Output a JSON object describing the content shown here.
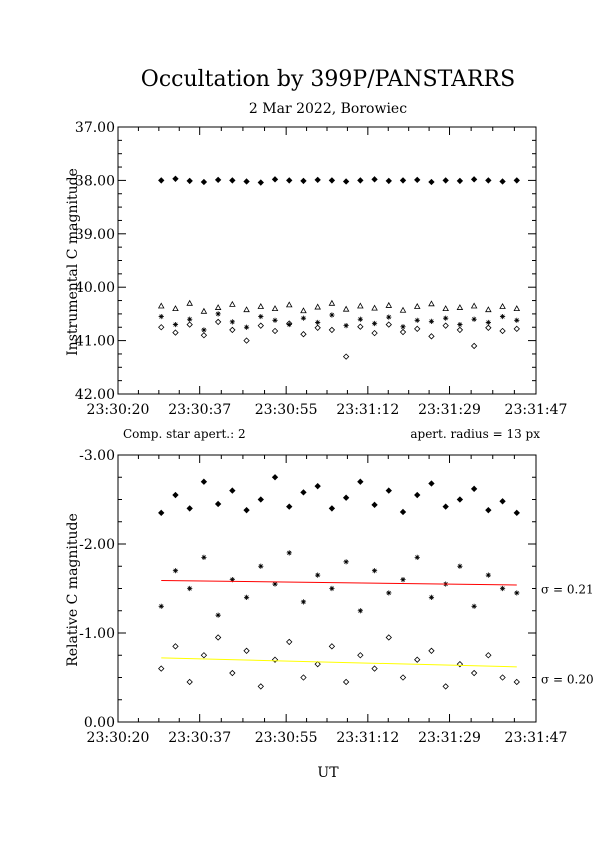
{
  "title": "Occultation by 399P/PANSTARRS",
  "subtitle": "2 Mar 2022, Borowiec",
  "xlabel": "UT",
  "chart_data": [
    {
      "type": "scatter",
      "id": "top",
      "ylabel": "Instrumental C magnitude",
      "ylim": [
        37.0,
        42.0
      ],
      "y_inverted": true,
      "x_range": [
        "23:30:20",
        "23:31:47"
      ],
      "x_tick_labels": [
        "23:30:20",
        "23:30:37",
        "23:30:55",
        "23:31:12",
        "23:31:29",
        "23:31:47"
      ],
      "y_tick_labels": [
        "37.00",
        "38.00",
        "39.00",
        "40.00",
        "41.00",
        "42.00"
      ],
      "grid": false,
      "series": [
        {
          "marker": "filled-diamond",
          "color": "#000000",
          "x_start": "23:30:29",
          "x_end": "23:31:43",
          "values": [
            38.0,
            37.97,
            38.01,
            38.03,
            37.99,
            38.0,
            38.02,
            38.04,
            37.98,
            38.0,
            38.01,
            37.99,
            38.0,
            38.02,
            38.0,
            37.98,
            38.01,
            38.0,
            37.99,
            38.03,
            38.0,
            38.01,
            37.98,
            38.0,
            38.02,
            38.0
          ]
        },
        {
          "marker": "triangle",
          "color": "#000000",
          "x_start": "23:30:29",
          "x_end": "23:31:43",
          "values": [
            40.35,
            40.4,
            40.3,
            40.45,
            40.38,
            40.32,
            40.42,
            40.36,
            40.4,
            40.33,
            40.44,
            40.37,
            40.3,
            40.41,
            40.35,
            40.39,
            40.34,
            40.43,
            40.36,
            40.31,
            40.4,
            40.38,
            40.35,
            40.42,
            40.36,
            40.4
          ]
        },
        {
          "marker": "asterisk",
          "color": "#000000",
          "x_start": "23:30:29",
          "x_end": "23:31:43",
          "values": [
            40.55,
            40.7,
            40.6,
            40.8,
            40.5,
            40.65,
            40.75,
            40.55,
            40.62,
            40.7,
            40.58,
            40.66,
            40.52,
            40.72,
            40.6,
            40.68,
            40.56,
            40.74,
            40.62,
            40.64,
            40.58,
            40.7,
            40.6,
            40.66,
            40.55,
            40.62
          ]
        },
        {
          "marker": "diamond",
          "color": "#000000",
          "x_start": "23:30:29",
          "x_end": "23:31:43",
          "values": [
            40.75,
            40.85,
            40.7,
            40.9,
            40.65,
            40.8,
            41.0,
            40.72,
            40.82,
            40.68,
            40.88,
            40.76,
            40.8,
            41.3,
            40.74,
            40.86,
            40.7,
            40.84,
            40.78,
            40.92,
            40.72,
            40.8,
            41.1,
            40.76,
            40.82,
            40.78
          ]
        }
      ]
    },
    {
      "type": "scatter",
      "id": "bottom",
      "ylabel": "Relative C magnitude",
      "ylim": [
        -3.0,
        0.0
      ],
      "y_inverted": true,
      "x_range": [
        "23:30:20",
        "23:31:47"
      ],
      "x_tick_labels": [
        "23:30:20",
        "23:30:37",
        "23:30:55",
        "23:31:12",
        "23:31:29",
        "23:31:47"
      ],
      "y_tick_labels": [
        "-3.00",
        "-2.00",
        "-1.00",
        "0.00"
      ],
      "grid": false,
      "annotations": {
        "left": "Comp. star apert.: 2",
        "right": "apert. radius = 13 px"
      },
      "series": [
        {
          "marker": "filled-diamond",
          "color": "#000000",
          "x_start": "23:30:29",
          "x_end": "23:31:43",
          "values": [
            -2.35,
            -2.55,
            -2.4,
            -2.7,
            -2.45,
            -2.6,
            -2.38,
            -2.5,
            -2.75,
            -2.42,
            -2.58,
            -2.65,
            -2.4,
            -2.52,
            -2.7,
            -2.44,
            -2.6,
            -2.36,
            -2.55,
            -2.68,
            -2.42,
            -2.5,
            -2.62,
            -2.38,
            -2.48,
            -2.35
          ]
        },
        {
          "marker": "asterisk",
          "color": "#000000",
          "x_start": "23:30:29",
          "x_end": "23:31:43",
          "values": [
            -1.3,
            -1.7,
            -1.5,
            -1.85,
            -1.2,
            -1.6,
            -1.4,
            -1.75,
            -1.55,
            -1.9,
            -1.35,
            -1.65,
            -1.5,
            -1.8,
            -1.25,
            -1.7,
            -1.45,
            -1.6,
            -1.85,
            -1.4,
            -1.55,
            -1.75,
            -1.3,
            -1.65,
            -1.5,
            -1.45
          ]
        },
        {
          "marker": "diamond",
          "color": "#000000",
          "x_start": "23:30:29",
          "x_end": "23:31:43",
          "values": [
            -0.6,
            -0.85,
            -0.45,
            -0.75,
            -0.95,
            -0.55,
            -0.8,
            -0.4,
            -0.7,
            -0.9,
            -0.5,
            -0.65,
            -0.85,
            -0.45,
            -0.75,
            -0.6,
            -0.95,
            -0.5,
            -0.7,
            -0.8,
            -0.4,
            -0.65,
            -0.55,
            -0.75,
            -0.5,
            -0.45
          ]
        }
      ],
      "trend_lines": [
        {
          "color": "#ff0000",
          "y_start": -1.59,
          "y_end": -1.54,
          "label": "σ = 0.21",
          "label_value": -1.49
        },
        {
          "color": "#ffff00",
          "y_start": -0.72,
          "y_end": -0.62,
          "label": "σ = 0.20",
          "label_value": -0.48
        }
      ]
    }
  ]
}
